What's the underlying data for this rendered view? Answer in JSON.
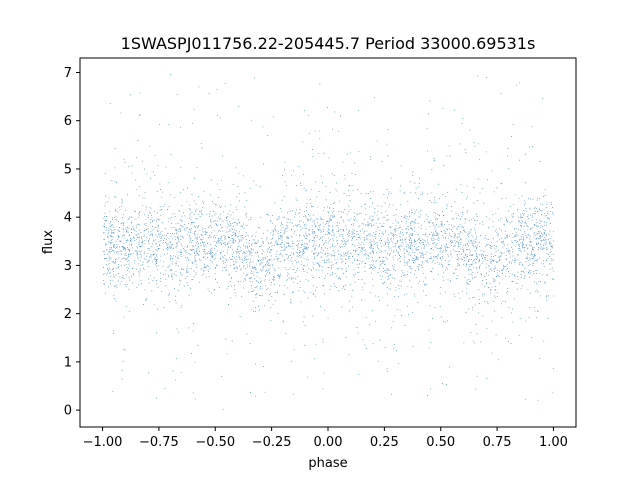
{
  "chart_data": {
    "type": "scatter",
    "title": "1SWASPJ011756.22-205445.7 Period 33000.69531s",
    "xlabel": "phase",
    "ylabel": "flux",
    "xlim": [
      -1.1,
      1.1
    ],
    "ylim": [
      -0.35,
      7.3
    ],
    "xticks": [
      -1.0,
      -0.75,
      -0.5,
      -0.25,
      0.0,
      0.25,
      0.5,
      0.75,
      1.0
    ],
    "xtick_labels": [
      "−1.00",
      "−0.75",
      "−0.50",
      "−0.25",
      "0.00",
      "0.25",
      "0.50",
      "0.75",
      "1.00"
    ],
    "yticks": [
      0,
      1,
      2,
      3,
      4,
      5,
      6,
      7
    ],
    "ytick_labels": [
      "0",
      "1",
      "2",
      "3",
      "4",
      "5",
      "6",
      "7"
    ],
    "grid": false,
    "marker_color": "#1f77b4",
    "series": [
      {
        "phase_range": [
          -1.0,
          1.0
        ],
        "mean_flux": 3.45,
        "flux_range": [
          0.0,
          7.0
        ],
        "core_band": [
          2.5,
          4.5
        ],
        "dips": [
          {
            "phase": -0.3,
            "min_flux": 3.0
          },
          {
            "phase": 0.7,
            "min_flux": 3.0
          }
        ],
        "approx_point_count": 50000
      }
    ]
  }
}
